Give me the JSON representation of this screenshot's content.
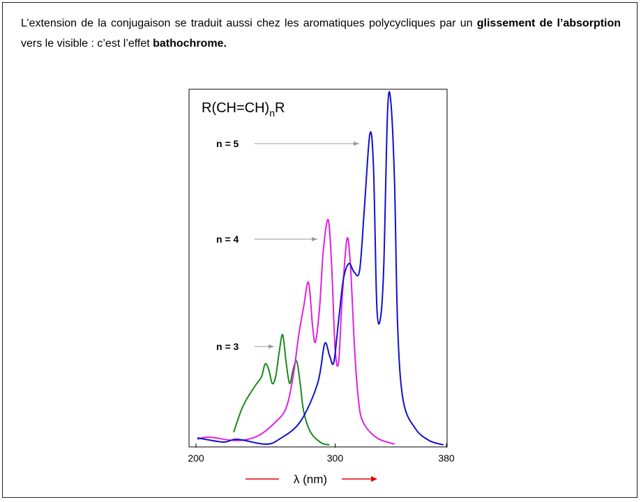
{
  "paragraph": {
    "parts": [
      {
        "text": "L’extension de la conjugaison se traduit aussi chez les aromatiques polycycliques par un ",
        "bold": false
      },
      {
        "text": "glissement de l’absorption",
        "bold": true
      },
      {
        "text": " vers le visible : c’est l’effet ",
        "bold": false
      },
      {
        "text": "bathochrome.",
        "bold": true
      }
    ]
  },
  "chart_data": {
    "type": "line",
    "title": [
      "R(CH=CH)",
      "n",
      "R"
    ],
    "xlabel": "λ (nm)",
    "xlim": [
      200,
      380
    ],
    "xticks": [
      200,
      300,
      380
    ],
    "ylim": [
      0,
      1
    ],
    "series": [
      {
        "name": "n = 3",
        "color": "#1a8a1a",
        "x": [
          227.1,
          232.2,
          235.7,
          239.7,
          243.7,
          247.2,
          249.7,
          252.3,
          254.8,
          257.3,
          259.8,
          262.3,
          264.8,
          267.3,
          269.8,
          272.4,
          274.9,
          277.4,
          282.4,
          289.9,
          295.9
        ],
        "values": [
          0.04,
          0.1,
          0.13,
          0.156,
          0.18,
          0.2,
          0.236,
          0.22,
          0.18,
          0.2,
          0.27,
          0.32,
          0.24,
          0.18,
          0.22,
          0.244,
          0.18,
          0.1,
          0.04,
          0.01,
          0.004
        ]
      },
      {
        "name": "n = 4",
        "color": "#e020e0",
        "x": [
          201,
          209.5,
          229.6,
          244.7,
          257.3,
          264.8,
          269.8,
          273.9,
          277.4,
          280.9,
          283.9,
          285.9,
          288.9,
          291.5,
          295,
          297.5,
          300,
          302.5,
          305,
          308.5,
          311,
          314,
          316.6,
          320,
          330,
          342.7
        ],
        "values": [
          0.02,
          0.026,
          0.016,
          0.03,
          0.07,
          0.11,
          0.2,
          0.32,
          0.4,
          0.47,
          0.34,
          0.3,
          0.4,
          0.56,
          0.65,
          0.52,
          0.28,
          0.24,
          0.42,
          0.594,
          0.52,
          0.28,
          0.14,
          0.07,
          0.024,
          0.006
        ]
      },
      {
        "name": "n = 5",
        "color": "#1010d0",
        "x": [
          201,
          219.6,
          229.6,
          249.7,
          259.8,
          274.9,
          287.4,
          292.5,
          296,
          299,
          302.5,
          306,
          310,
          313.6,
          317.6,
          321,
          325,
          327.6,
          330,
          332.7,
          335,
          337.7,
          340,
          342.7,
          345,
          349,
          357.8,
          367.8,
          377.9
        ],
        "values": [
          0.024,
          0.012,
          0.02,
          0.006,
          0.02,
          0.07,
          0.18,
          0.294,
          0.26,
          0.24,
          0.36,
          0.48,
          0.524,
          0.5,
          0.504,
          0.68,
          0.896,
          0.8,
          0.4,
          0.37,
          0.52,
          0.96,
          0.99,
          0.76,
          0.34,
          0.13,
          0.05,
          0.016,
          0.004
        ]
      }
    ]
  }
}
